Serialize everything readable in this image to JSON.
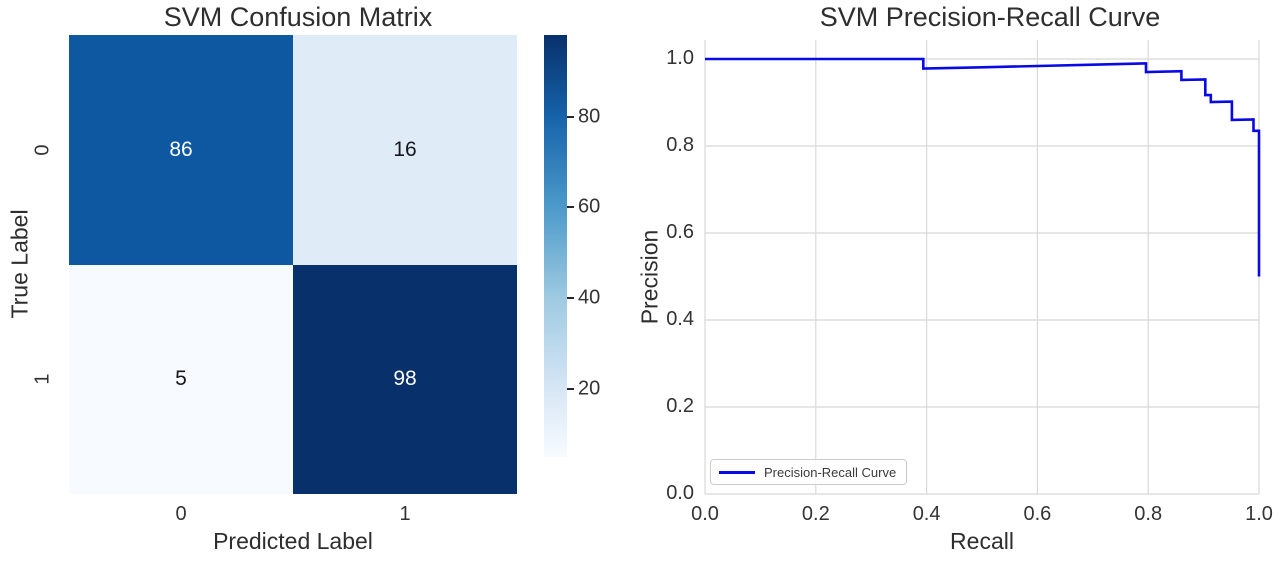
{
  "figure": {
    "background": "#ffffff",
    "text_color": "#262626"
  },
  "chart_data": [
    {
      "type": "heatmap",
      "title": "SVM Confusion Matrix",
      "xlabel": "Predicted Label",
      "ylabel": "True Label",
      "x_ticklabels": [
        "0",
        "1"
      ],
      "y_ticklabels": [
        "0",
        "1"
      ],
      "matrix": [
        [
          86,
          16
        ],
        [
          5,
          98
        ]
      ],
      "cell_colors": [
        [
          "#0d58a1",
          "#dfecf7"
        ],
        [
          "#f7fbff",
          "#08306b"
        ]
      ],
      "cell_text_colors": [
        [
          "#ffffff",
          "#16161d"
        ],
        [
          "#16161d",
          "#ffffff"
        ]
      ],
      "colormap": "Blues",
      "colorbar": {
        "vmin": 5,
        "vmax": 98,
        "ticks": [
          80,
          60,
          40,
          20
        ],
        "ticklabels": [
          "80",
          "60",
          "40",
          "20"
        ],
        "gradient_stops": [
          {
            "pos": 0,
            "color": "#08306b"
          },
          {
            "pos": 19.4,
            "color": "#1663aa"
          },
          {
            "pos": 40.9,
            "color": "#4d9aca"
          },
          {
            "pos": 62.4,
            "color": "#9ecae1"
          },
          {
            "pos": 83.9,
            "color": "#d7e6f5"
          },
          {
            "pos": 100,
            "color": "#f7fbff"
          }
        ]
      }
    },
    {
      "type": "line",
      "title": "SVM Precision-Recall Curve",
      "xlabel": "Recall",
      "ylabel": "Precision",
      "x_tickvals": [
        0.0,
        0.2,
        0.4,
        0.6,
        0.8,
        1.0
      ],
      "x_ticklabels": [
        "0.0",
        "0.2",
        "0.4",
        "0.6",
        "0.8",
        "1.0"
      ],
      "y_tickvals": [
        0.0,
        0.2,
        0.4,
        0.6,
        0.8,
        1.0
      ],
      "y_ticklabels": [
        "0.0",
        "0.2",
        "0.4",
        "0.6",
        "0.8",
        "1.0"
      ],
      "xlim": [
        0.0,
        1.0
      ],
      "ylim": [
        0.0,
        1.044
      ],
      "grid": true,
      "grid_color": "#d8d8d8",
      "line_color": "#0909e8",
      "legend": {
        "label": "Precision-Recall Curve",
        "position": "lower left"
      },
      "points": [
        [
          0.0,
          1.0
        ],
        [
          0.394,
          1.0
        ],
        [
          0.394,
          0.978
        ],
        [
          0.5,
          0.981
        ],
        [
          0.6,
          0.984
        ],
        [
          0.7,
          0.987
        ],
        [
          0.796,
          0.99
        ],
        [
          0.796,
          0.97
        ],
        [
          0.86,
          0.972
        ],
        [
          0.86,
          0.952
        ],
        [
          0.903,
          0.953
        ],
        [
          0.903,
          0.917
        ],
        [
          0.913,
          0.917
        ],
        [
          0.913,
          0.901
        ],
        [
          0.951,
          0.902
        ],
        [
          0.951,
          0.86
        ],
        [
          0.99,
          0.861
        ],
        [
          0.99,
          0.835
        ],
        [
          1.0,
          0.835
        ],
        [
          1.0,
          0.5
        ]
      ]
    }
  ]
}
